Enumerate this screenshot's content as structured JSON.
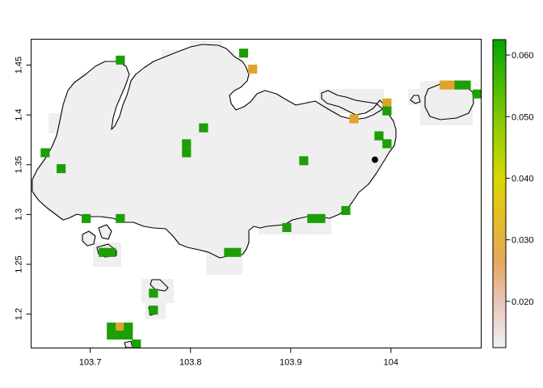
{
  "chart_data": {
    "type": "heatmap",
    "title": "",
    "xlabel": "",
    "ylabel": "",
    "xlim": [
      103.641,
      104.09
    ],
    "ylim": [
      1.166,
      1.476
    ],
    "xticks": [
      {
        "value": 103.7,
        "label": "103.7"
      },
      {
        "value": 103.8,
        "label": "103.8"
      },
      {
        "value": 103.9,
        "label": "103.9"
      },
      {
        "value": 104.0,
        "label": "104"
      }
    ],
    "yticks": [
      {
        "value": 1.2,
        "label": "1.2"
      },
      {
        "value": 1.25,
        "label": "1.25"
      },
      {
        "value": 1.3,
        "label": "1.3"
      },
      {
        "value": 1.35,
        "label": "1.35"
      },
      {
        "value": 1.4,
        "label": "1.4"
      },
      {
        "value": 1.45,
        "label": "1.45"
      }
    ],
    "grid": false,
    "colorbar": {
      "range": [
        0.0125,
        0.0625
      ],
      "ticks": [
        {
          "value": 0.02,
          "label": "0.020"
        },
        {
          "value": 0.03,
          "label": "0.030"
        },
        {
          "value": 0.04,
          "label": "0.040"
        },
        {
          "value": 0.05,
          "label": "0.050"
        },
        {
          "value": 0.06,
          "label": "0.060"
        }
      ],
      "colors": [
        "#f2f2f2",
        "#e6a896",
        "#e8b13a",
        "#e6e600",
        "#63c600",
        "#00a600"
      ]
    },
    "cell_size": 0.009,
    "cells": [
      {
        "x": 103.73,
        "y": 1.455,
        "value": 0.058
      },
      {
        "x": 103.853,
        "y": 1.462,
        "value": 0.058
      },
      {
        "x": 103.862,
        "y": 1.446,
        "value": 0.03
      },
      {
        "x": 104.053,
        "y": 1.43,
        "value": 0.03
      },
      {
        "x": 104.06,
        "y": 1.43,
        "value": 0.032
      },
      {
        "x": 104.068,
        "y": 1.43,
        "value": 0.058
      },
      {
        "x": 104.075,
        "y": 1.43,
        "value": 0.058
      },
      {
        "x": 104.086,
        "y": 1.421,
        "value": 0.058
      },
      {
        "x": 103.996,
        "y": 1.412,
        "value": 0.03
      },
      {
        "x": 103.996,
        "y": 1.404,
        "value": 0.058
      },
      {
        "x": 103.963,
        "y": 1.396,
        "value": 0.03
      },
      {
        "x": 103.813,
        "y": 1.387,
        "value": 0.058
      },
      {
        "x": 103.988,
        "y": 1.379,
        "value": 0.058
      },
      {
        "x": 103.996,
        "y": 1.371,
        "value": 0.058
      },
      {
        "x": 103.796,
        "y": 1.371,
        "value": 0.058
      },
      {
        "x": 103.796,
        "y": 1.362,
        "value": 0.058
      },
      {
        "x": 103.655,
        "y": 1.362,
        "value": 0.058
      },
      {
        "x": 103.913,
        "y": 1.354,
        "value": 0.058
      },
      {
        "x": 103.671,
        "y": 1.346,
        "value": 0.058
      },
      {
        "x": 103.696,
        "y": 1.296,
        "value": 0.058
      },
      {
        "x": 103.73,
        "y": 1.296,
        "value": 0.058
      },
      {
        "x": 103.921,
        "y": 1.296,
        "value": 0.058
      },
      {
        "x": 103.93,
        "y": 1.296,
        "value": 0.058
      },
      {
        "x": 103.955,
        "y": 1.304,
        "value": 0.058
      },
      {
        "x": 103.896,
        "y": 1.287,
        "value": 0.058
      },
      {
        "x": 103.713,
        "y": 1.262,
        "value": 0.058
      },
      {
        "x": 103.721,
        "y": 1.262,
        "value": 0.058
      },
      {
        "x": 103.838,
        "y": 1.262,
        "value": 0.058
      },
      {
        "x": 103.846,
        "y": 1.262,
        "value": 0.058
      },
      {
        "x": 103.763,
        "y": 1.221,
        "value": 0.058
      },
      {
        "x": 103.763,
        "y": 1.204,
        "value": 0.058
      },
      {
        "x": 103.721,
        "y": 1.187,
        "value": 0.058
      },
      {
        "x": 103.73,
        "y": 1.187,
        "value": 0.03
      },
      {
        "x": 103.738,
        "y": 1.187,
        "value": 0.058
      },
      {
        "x": 103.721,
        "y": 1.179,
        "value": 0.058
      },
      {
        "x": 103.73,
        "y": 1.179,
        "value": 0.058
      },
      {
        "x": 103.738,
        "y": 1.179,
        "value": 0.058
      },
      {
        "x": 103.746,
        "y": 1.17,
        "value": 0.058
      }
    ],
    "point": {
      "x": 103.984,
      "y": 1.355
    }
  }
}
